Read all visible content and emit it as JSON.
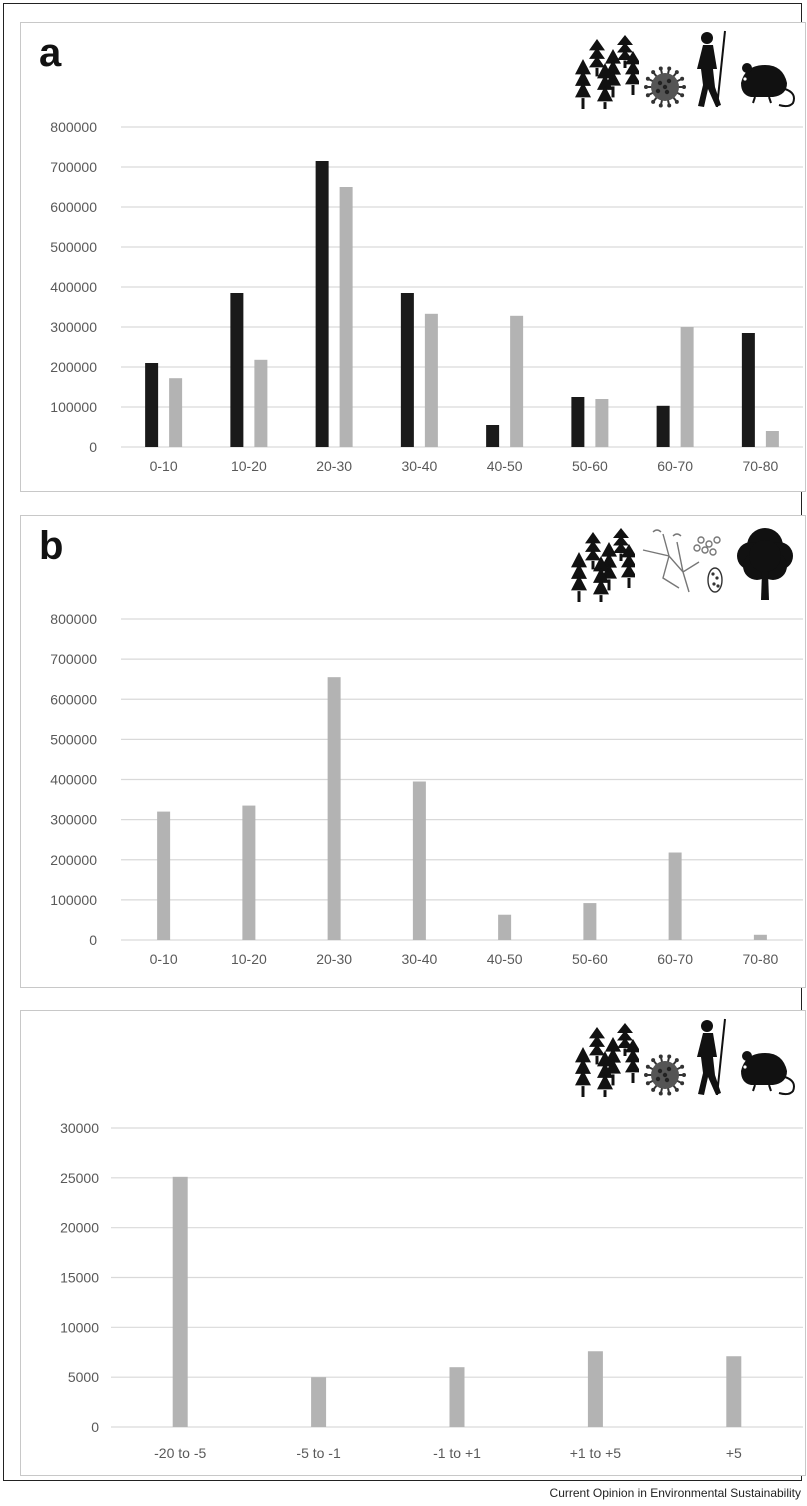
{
  "colors": {
    "black": "#1a1a1a",
    "gray": "#b3b3b3",
    "grid": "#d9d9d9",
    "axis_text": "#595959"
  },
  "footer": {
    "source": "Current Opinion in Environmental Sustainability"
  },
  "chart_data": [
    {
      "type": "bar",
      "panel_label": "a",
      "icons": [
        "forest-icon",
        "virus-icon",
        "human-icon",
        "rat-icon"
      ],
      "categories": [
        "0-10",
        "10-20",
        "20-30",
        "30-40",
        "40-50",
        "50-60",
        "60-70",
        "70-80"
      ],
      "series": [
        {
          "color": "#1a1a1a",
          "values": [
            210000,
            385000,
            715000,
            385000,
            55000,
            125000,
            103000,
            285000
          ]
        },
        {
          "color": "#b3b3b3",
          "values": [
            172000,
            218000,
            650000,
            333000,
            328000,
            120000,
            300000,
            40000
          ]
        }
      ],
      "yticks": [
        0,
        100000,
        200000,
        300000,
        400000,
        500000,
        600000,
        700000,
        800000
      ],
      "ylim": [
        0,
        800000
      ],
      "grid": true
    },
    {
      "type": "bar",
      "panel_label": "b",
      "icons": [
        "forest-icon",
        "fungus-icon",
        "tree-icon"
      ],
      "categories": [
        "0-10",
        "10-20",
        "20-30",
        "30-40",
        "40-50",
        "50-60",
        "60-70",
        "70-80"
      ],
      "series": [
        {
          "color": "#b3b3b3",
          "values": [
            320000,
            335000,
            655000,
            395000,
            63000,
            92000,
            218000,
            13000
          ]
        }
      ],
      "yticks": [
        0,
        100000,
        200000,
        300000,
        400000,
        500000,
        600000,
        700000,
        800000
      ],
      "ylim": [
        0,
        800000
      ],
      "grid": true
    },
    {
      "type": "bar",
      "panel_label": "",
      "icons": [
        "forest-icon",
        "virus-icon",
        "human-icon",
        "rat-icon"
      ],
      "categories": [
        "-20 to -5",
        "-5 to -1",
        "-1 to +1",
        "+1 to +5",
        "+5"
      ],
      "series": [
        {
          "color": "#b3b3b3",
          "values": [
            25100,
            5000,
            6000,
            7600,
            7100
          ]
        }
      ],
      "yticks": [
        0,
        5000,
        10000,
        15000,
        20000,
        25000,
        30000
      ],
      "ylim": [
        0,
        30000
      ],
      "grid": true
    }
  ]
}
